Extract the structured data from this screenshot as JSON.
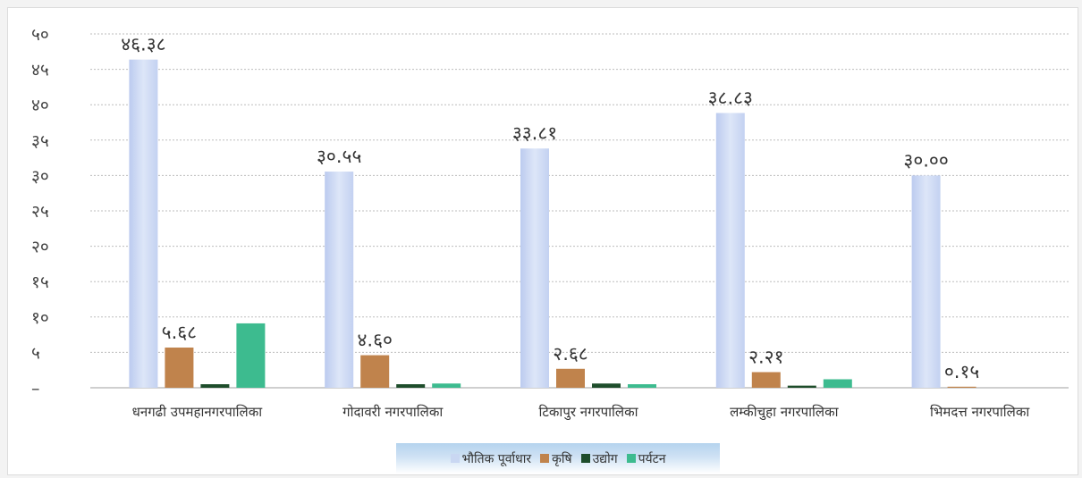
{
  "chart_data": {
    "type": "bar",
    "title": "",
    "xlabel": "",
    "ylabel": "",
    "ylim": [
      0,
      50
    ],
    "grid": true,
    "legend_position": "bottom",
    "y_ticks": [
      {
        "value": 0,
        "label": "–"
      },
      {
        "value": 5,
        "label": "५"
      },
      {
        "value": 10,
        "label": "१०"
      },
      {
        "value": 15,
        "label": "१५"
      },
      {
        "value": 20,
        "label": "२०"
      },
      {
        "value": 25,
        "label": "२५"
      },
      {
        "value": 30,
        "label": "३०"
      },
      {
        "value": 35,
        "label": "३५"
      },
      {
        "value": 40,
        "label": "४०"
      },
      {
        "value": 45,
        "label": "४५"
      },
      {
        "value": 50,
        "label": "५०"
      }
    ],
    "categories": [
      "धनगढी उपमहानगरपालिका",
      "गोदावरी नगरपालिका",
      "टिकापुर नगरपालिका",
      "लम्कीचुहा नगरपालिका",
      "भिमदत्त नगरपालिका"
    ],
    "series": [
      {
        "name": "भौतिक पूर्वाधार",
        "color": "#c9d7f2",
        "values": [
          46.38,
          30.55,
          33.81,
          38.83,
          30.0
        ],
        "labels": [
          "४६.३८",
          "३०.५५",
          "३३.८१",
          "३८.८३",
          "३०.००"
        ]
      },
      {
        "name": "कृषि",
        "color": "#c0834c",
        "values": [
          5.68,
          4.6,
          2.68,
          2.21,
          0.15
        ],
        "labels": [
          "५.६८",
          "४.६०",
          "२.६८",
          "२.२१",
          "०.१५"
        ]
      },
      {
        "name": "उद्योग",
        "color": "#1e4d2b",
        "values": [
          0.5,
          0.5,
          0.6,
          0.3,
          0
        ],
        "labels": [
          "",
          "",
          "",
          "",
          ""
        ]
      },
      {
        "name": "पर्यटन",
        "color": "#3dbb8f",
        "values": [
          9.1,
          0.6,
          0.5,
          1.2,
          0
        ],
        "labels": [
          "",
          "",
          "",
          "",
          ""
        ]
      }
    ]
  }
}
